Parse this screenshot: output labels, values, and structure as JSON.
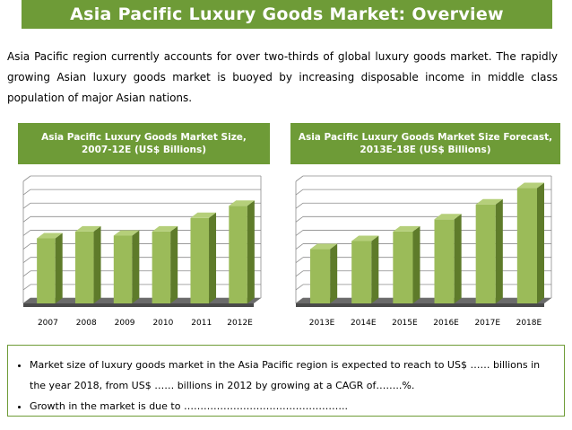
{
  "title": "Asia Pacific Luxury Goods Market: Overview",
  "intro": "Asia Pacific region currently accounts for over two-thirds of global luxury goods market. The rapidly growing Asian luxury goods market is buoyed by increasing disposable income in middle class population of major Asian nations.",
  "colors": {
    "accent": "#6e9b37",
    "bar_front": "#9bbb59",
    "bar_side": "#5e7b2a",
    "bar_top": "#b5cf7a"
  },
  "chart_data": [
    {
      "type": "bar",
      "title": "Asia Pacific Luxury Goods Market Size, 2007-12E (US$ Billions)",
      "categories": [
        "2007",
        "2008",
        "2009",
        "2010",
        "2011",
        "2012E"
      ],
      "values": [
        48,
        53,
        50,
        53,
        63,
        72
      ],
      "ylim": [
        0,
        90
      ],
      "xlabel": "",
      "ylabel": "",
      "grid": true
    },
    {
      "type": "bar",
      "title": "Asia Pacific Luxury Goods Market Size Forecast, 2013E-18E (US$ Billions)",
      "categories": [
        "2013E",
        "2014E",
        "2015E",
        "2016E",
        "2017E",
        "2018E"
      ],
      "values": [
        40,
        46,
        53,
        62,
        73,
        85
      ],
      "ylim": [
        0,
        90
      ],
      "xlabel": "",
      "ylabel": "",
      "grid": true
    }
  ],
  "bullets": [
    "Market size of luxury goods market in the Asia Pacific region is expected to reach to US$ …… billions in the year 2018, from US$ …… billions in 2012 by growing at a CAGR of……..%.",
    "Growth in the market is due to ………………………………………….."
  ]
}
